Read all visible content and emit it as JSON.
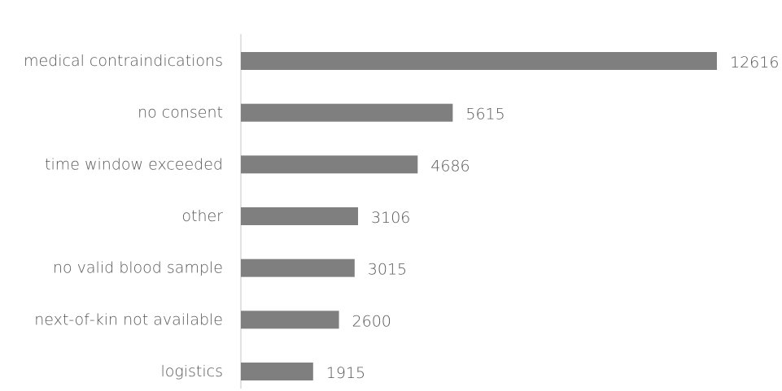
{
  "chart_data": {
    "type": "bar",
    "orientation": "horizontal",
    "title": "",
    "xlabel": "",
    "ylabel": "",
    "categories": [
      "medical contraindications",
      "no consent",
      "time window exceeded",
      "other",
      "no valid blood sample",
      "next-of-kin not available",
      "logistics"
    ],
    "values": [
      12616,
      5615,
      4686,
      3106,
      3015,
      2600,
      1915
    ],
    "xlim": [
      0,
      12616
    ],
    "grid": false,
    "legend": "none",
    "bar_color": "#7f7f7f",
    "text_color": "#595959",
    "axis_color": "#d9d9d9"
  }
}
